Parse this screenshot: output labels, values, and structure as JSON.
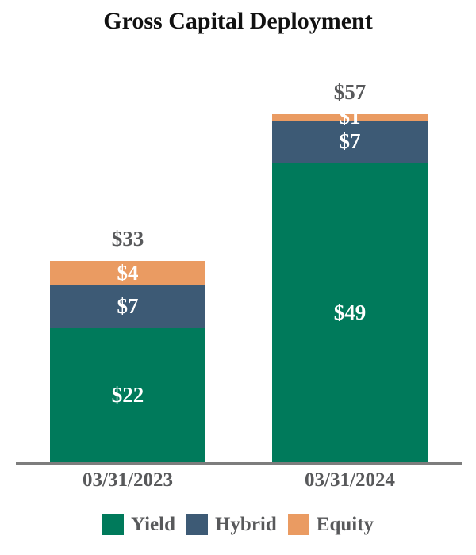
{
  "title": "Gross Capital Deployment",
  "colors": {
    "yield": "#007a5b",
    "hybrid": "#3d5a75",
    "equity": "#ea9b62",
    "axis_line": "#7d7d7d",
    "label_gray": "#58595b",
    "title_black": "#111111",
    "bar_label_white": "#ffffff"
  },
  "chart_data": {
    "type": "bar",
    "stacked": true,
    "title": "Gross Capital Deployment",
    "categories": [
      "03/31/2023",
      "03/31/2024"
    ],
    "series": [
      {
        "name": "Yield",
        "color_key": "yield",
        "values": [
          22,
          49
        ]
      },
      {
        "name": "Hybrid",
        "color_key": "hybrid",
        "values": [
          7,
          7
        ]
      },
      {
        "name": "Equity",
        "color_key": "equity",
        "values": [
          4,
          1
        ]
      }
    ],
    "stack_order_top_to_bottom": [
      "Equity",
      "Hybrid",
      "Yield"
    ],
    "totals": [
      33,
      57
    ],
    "total_labels": [
      "$33",
      "$57"
    ],
    "segment_labels": {
      "03/31/2023": {
        "Yield": "$22",
        "Hybrid": "$7",
        "Equity": "$4"
      },
      "03/31/2024": {
        "Yield": "$49",
        "Hybrid": "$7",
        "Equity": "$1"
      }
    },
    "value_prefix": "$",
    "ylabel": "",
    "xlabel": "",
    "grid": false,
    "legend_position": "bottom"
  },
  "legend": {
    "items": [
      {
        "label": "Yield",
        "color_key": "yield"
      },
      {
        "label": "Hybrid",
        "color_key": "hybrid"
      },
      {
        "label": "Equity",
        "color_key": "equity"
      }
    ]
  }
}
